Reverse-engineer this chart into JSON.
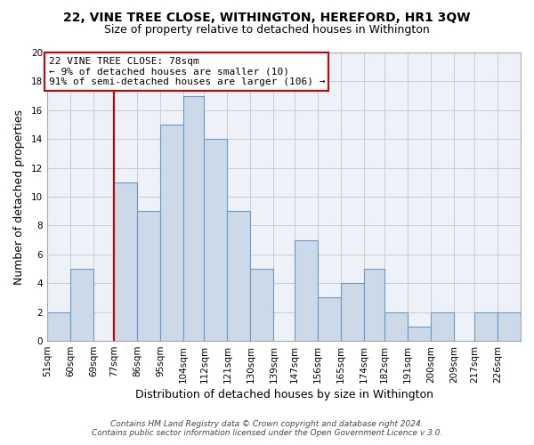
{
  "title": "22, VINE TREE CLOSE, WITHINGTON, HEREFORD, HR1 3QW",
  "subtitle": "Size of property relative to detached houses in Withington",
  "xlabel": "Distribution of detached houses by size in Withington",
  "ylabel": "Number of detached properties",
  "footer_lines": [
    "Contains HM Land Registry data © Crown copyright and database right 2024.",
    "Contains public sector information licensed under the Open Government Licence v 3.0."
  ],
  "bin_labels": [
    "51sqm",
    "60sqm",
    "69sqm",
    "77sqm",
    "86sqm",
    "95sqm",
    "104sqm",
    "112sqm",
    "121sqm",
    "130sqm",
    "139sqm",
    "147sqm",
    "156sqm",
    "165sqm",
    "174sqm",
    "182sqm",
    "191sqm",
    "200sqm",
    "209sqm",
    "217sqm",
    "226sqm"
  ],
  "bin_edges": [
    51,
    60,
    69,
    77,
    86,
    95,
    104,
    112,
    121,
    130,
    139,
    147,
    156,
    165,
    174,
    182,
    191,
    200,
    209,
    217,
    226
  ],
  "counts": [
    2,
    5,
    0,
    11,
    9,
    15,
    17,
    14,
    9,
    5,
    0,
    7,
    3,
    4,
    5,
    2,
    1,
    2,
    0,
    2,
    2
  ],
  "bar_color": "#ccd9e8",
  "bar_edge_color": "#6699cc",
  "vline_x": 77,
  "vline_color": "#cc0000",
  "ylim": [
    0,
    20
  ],
  "yticks": [
    0,
    2,
    4,
    6,
    8,
    10,
    12,
    14,
    16,
    18,
    20
  ],
  "annotation_line1": "22 VINE TREE CLOSE: 78sqm",
  "annotation_line2": "← 9% of detached houses are smaller (10)",
  "annotation_line3": "91% of semi-detached houses are larger (106) →",
  "annotation_box_color": "#ffffff",
  "annotation_box_edgecolor": "#cc0000",
  "grid_color": "#cccccc",
  "background_color": "#ffffff",
  "plot_bg_color": "#eef2f8"
}
